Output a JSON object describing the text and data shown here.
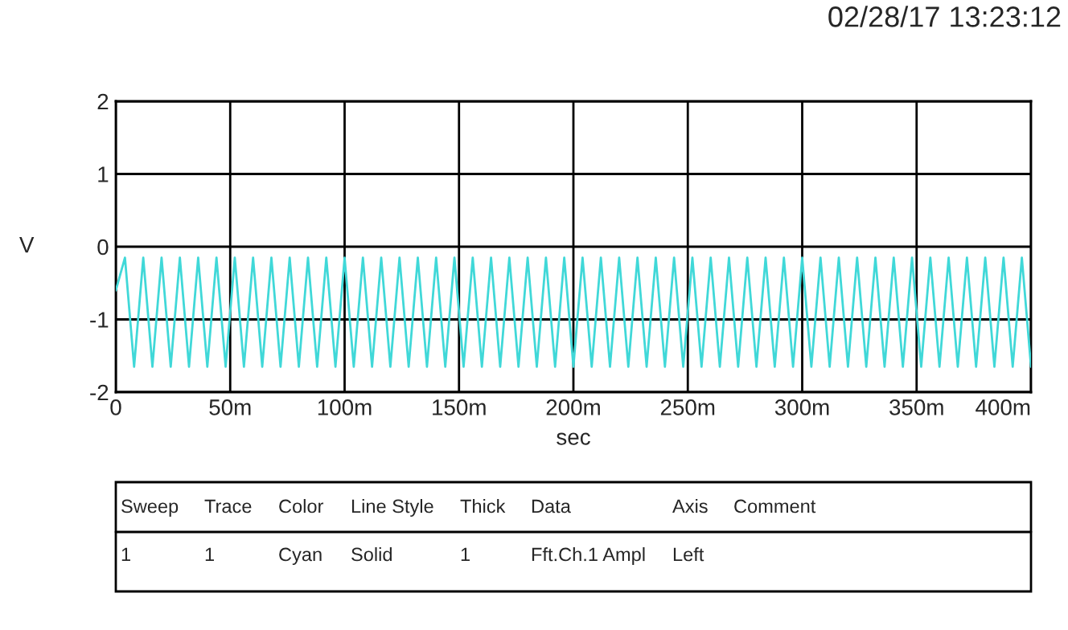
{
  "chart_data": {
    "type": "line",
    "title": "02/28/17 13:23:12",
    "xlabel": "sec",
    "ylabel": "V",
    "x": [
      0,
      4,
      8,
      12,
      16,
      20,
      24,
      28,
      32,
      36,
      40,
      44,
      48,
      52,
      56,
      60,
      64,
      68,
      72,
      76,
      80,
      84,
      88,
      92,
      96,
      100,
      104,
      108,
      112,
      116,
      120,
      124,
      128,
      132,
      136,
      140,
      144,
      148,
      152,
      156,
      160,
      164,
      168,
      172,
      176,
      180,
      184,
      188,
      192,
      196,
      200,
      204,
      208,
      212,
      216,
      220,
      224,
      228,
      232,
      236,
      240,
      244,
      248,
      252,
      256,
      260,
      264,
      268,
      272,
      276,
      280,
      284,
      288,
      292,
      296,
      300,
      304,
      308,
      312,
      316,
      320,
      324,
      328,
      332,
      336,
      340,
      344,
      348,
      352,
      356,
      360,
      364,
      368,
      372,
      376,
      380,
      384,
      388,
      392,
      396,
      400
    ],
    "series": [
      {
        "color": "#40d8d8",
        "values": [
          -0.6,
          -0.15,
          -1.65,
          -0.15,
          -1.65,
          -0.15,
          -1.65,
          -0.15,
          -1.65,
          -0.15,
          -1.65,
          -0.15,
          -1.65,
          -0.15,
          -1.65,
          -0.15,
          -1.65,
          -0.15,
          -1.65,
          -0.15,
          -1.65,
          -0.15,
          -1.65,
          -0.15,
          -1.65,
          -0.15,
          -1.65,
          -0.15,
          -1.65,
          -0.15,
          -1.65,
          -0.15,
          -1.65,
          -0.15,
          -1.65,
          -0.15,
          -1.65,
          -0.15,
          -1.65,
          -0.15,
          -1.65,
          -0.15,
          -1.65,
          -0.15,
          -1.65,
          -0.15,
          -1.65,
          -0.15,
          -1.65,
          -0.15,
          -1.65,
          -0.15,
          -1.65,
          -0.15,
          -1.65,
          -0.15,
          -1.65,
          -0.15,
          -1.65,
          -0.15,
          -1.65,
          -0.15,
          -1.65,
          -0.15,
          -1.65,
          -0.15,
          -1.65,
          -0.15,
          -1.65,
          -0.15,
          -1.65,
          -0.15,
          -1.65,
          -0.15,
          -1.65,
          -0.15,
          -1.65,
          -0.15,
          -1.65,
          -0.15,
          -1.65,
          -0.15,
          -1.65,
          -0.15,
          -1.65,
          -0.15,
          -1.65,
          -0.15,
          -1.65,
          -0.15,
          -1.65,
          -0.15,
          -1.65,
          -0.15,
          -1.65,
          -0.15,
          -1.65,
          -0.15,
          -1.65,
          -0.15,
          -1.65
        ]
      }
    ],
    "xlim": [
      0,
      400
    ],
    "xticks": [
      0,
      {
        "value": 50,
        "label": "50m"
      },
      {
        "value": 100,
        "label": "100m"
      },
      {
        "value": 150,
        "label": "150m"
      },
      {
        "value": 200,
        "label": "200m"
      },
      {
        "value": 250,
        "label": "250m"
      },
      {
        "value": 300,
        "label": "300m"
      },
      {
        "value": 350,
        "label": "350m"
      },
      {
        "value": 400,
        "label": "400m"
      }
    ],
    "ylim": [
      -2,
      2
    ],
    "yticks": [
      -2,
      -1,
      0,
      1,
      2
    ],
    "grid": true,
    "marker": "none",
    "line_style": "solid",
    "annotations": [
      "Sweep",
      "Trace",
      "Color",
      "Line Style",
      "Thick",
      "Data",
      "Axis",
      "Comment",
      "1",
      "1",
      "Cyan",
      "Solid",
      "1",
      "Fft.Ch.1 Ampl",
      "Left"
    ]
  }
}
